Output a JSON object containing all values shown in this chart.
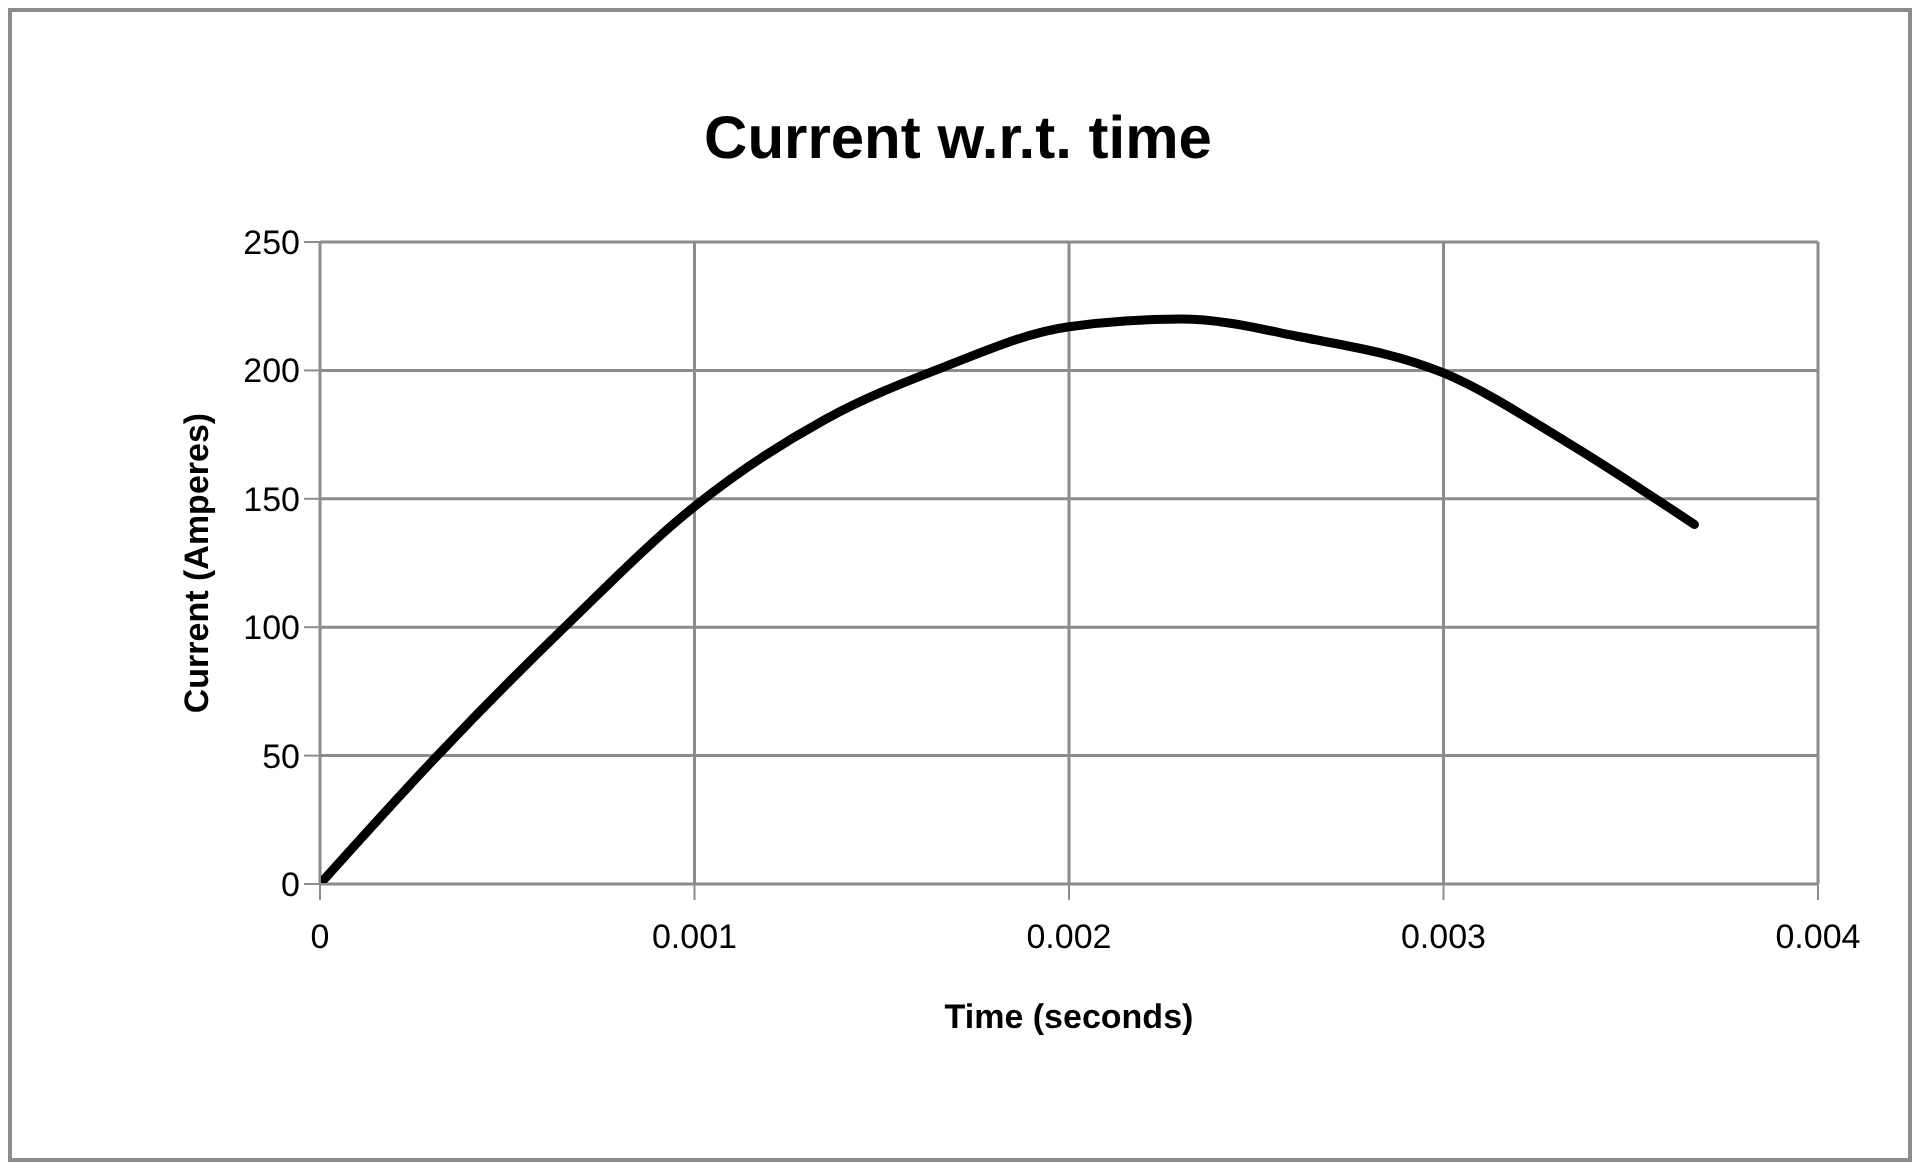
{
  "chart_data": {
    "type": "line",
    "title": "Current w.r.t. time",
    "xlabel": "Time (seconds)",
    "ylabel": "Current (Amperes)",
    "x": [
      0,
      0.00032,
      0.00066,
      0.001,
      0.00135,
      0.00166,
      0.002,
      0.0023,
      0.00262,
      0.003,
      0.00333,
      0.00367
    ],
    "series": [
      {
        "color": "#000000",
        "values": [
          0,
          51,
          101,
          147,
          181,
          201,
          217,
          220,
          213,
          199,
          172,
          140
        ]
      }
    ],
    "xlim": [
      0,
      0.004
    ],
    "xticks": [
      0,
      0.001,
      0.002,
      0.003,
      0.004
    ],
    "ylim": [
      0,
      250
    ],
    "yticks": [
      0,
      50,
      100,
      150,
      200,
      250
    ],
    "grid": true,
    "legend": false,
    "marker": "none",
    "line_style": "solid"
  }
}
